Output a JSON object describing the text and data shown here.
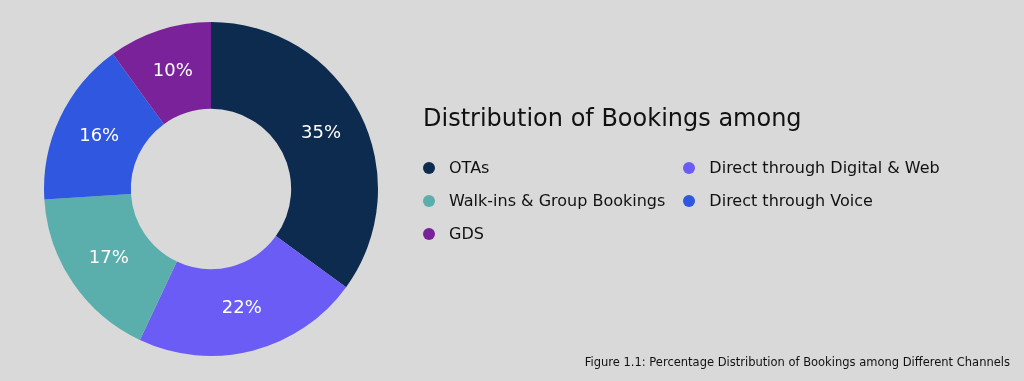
{
  "chart_data": {
    "type": "donut",
    "title": "Distribution of Bookings among",
    "categories": [
      "OTAs",
      "Walk-ins & Group Bookings",
      "GDS",
      "Direct through Digital & Web",
      "Direct through Voice"
    ],
    "values": [
      35,
      17,
      10,
      22,
      16
    ],
    "colors": [
      "#0d2b4e",
      "#5aafac",
      "#7a229a",
      "#6a5cf5",
      "#2f57e0"
    ],
    "value_labels": [
      "35%",
      "17%",
      "10%",
      "22%",
      "16%"
    ],
    "legend": "right",
    "annotations": [
      "Figure 1.1: Percentage Distribution of Bookings among Different Channels"
    ]
  }
}
